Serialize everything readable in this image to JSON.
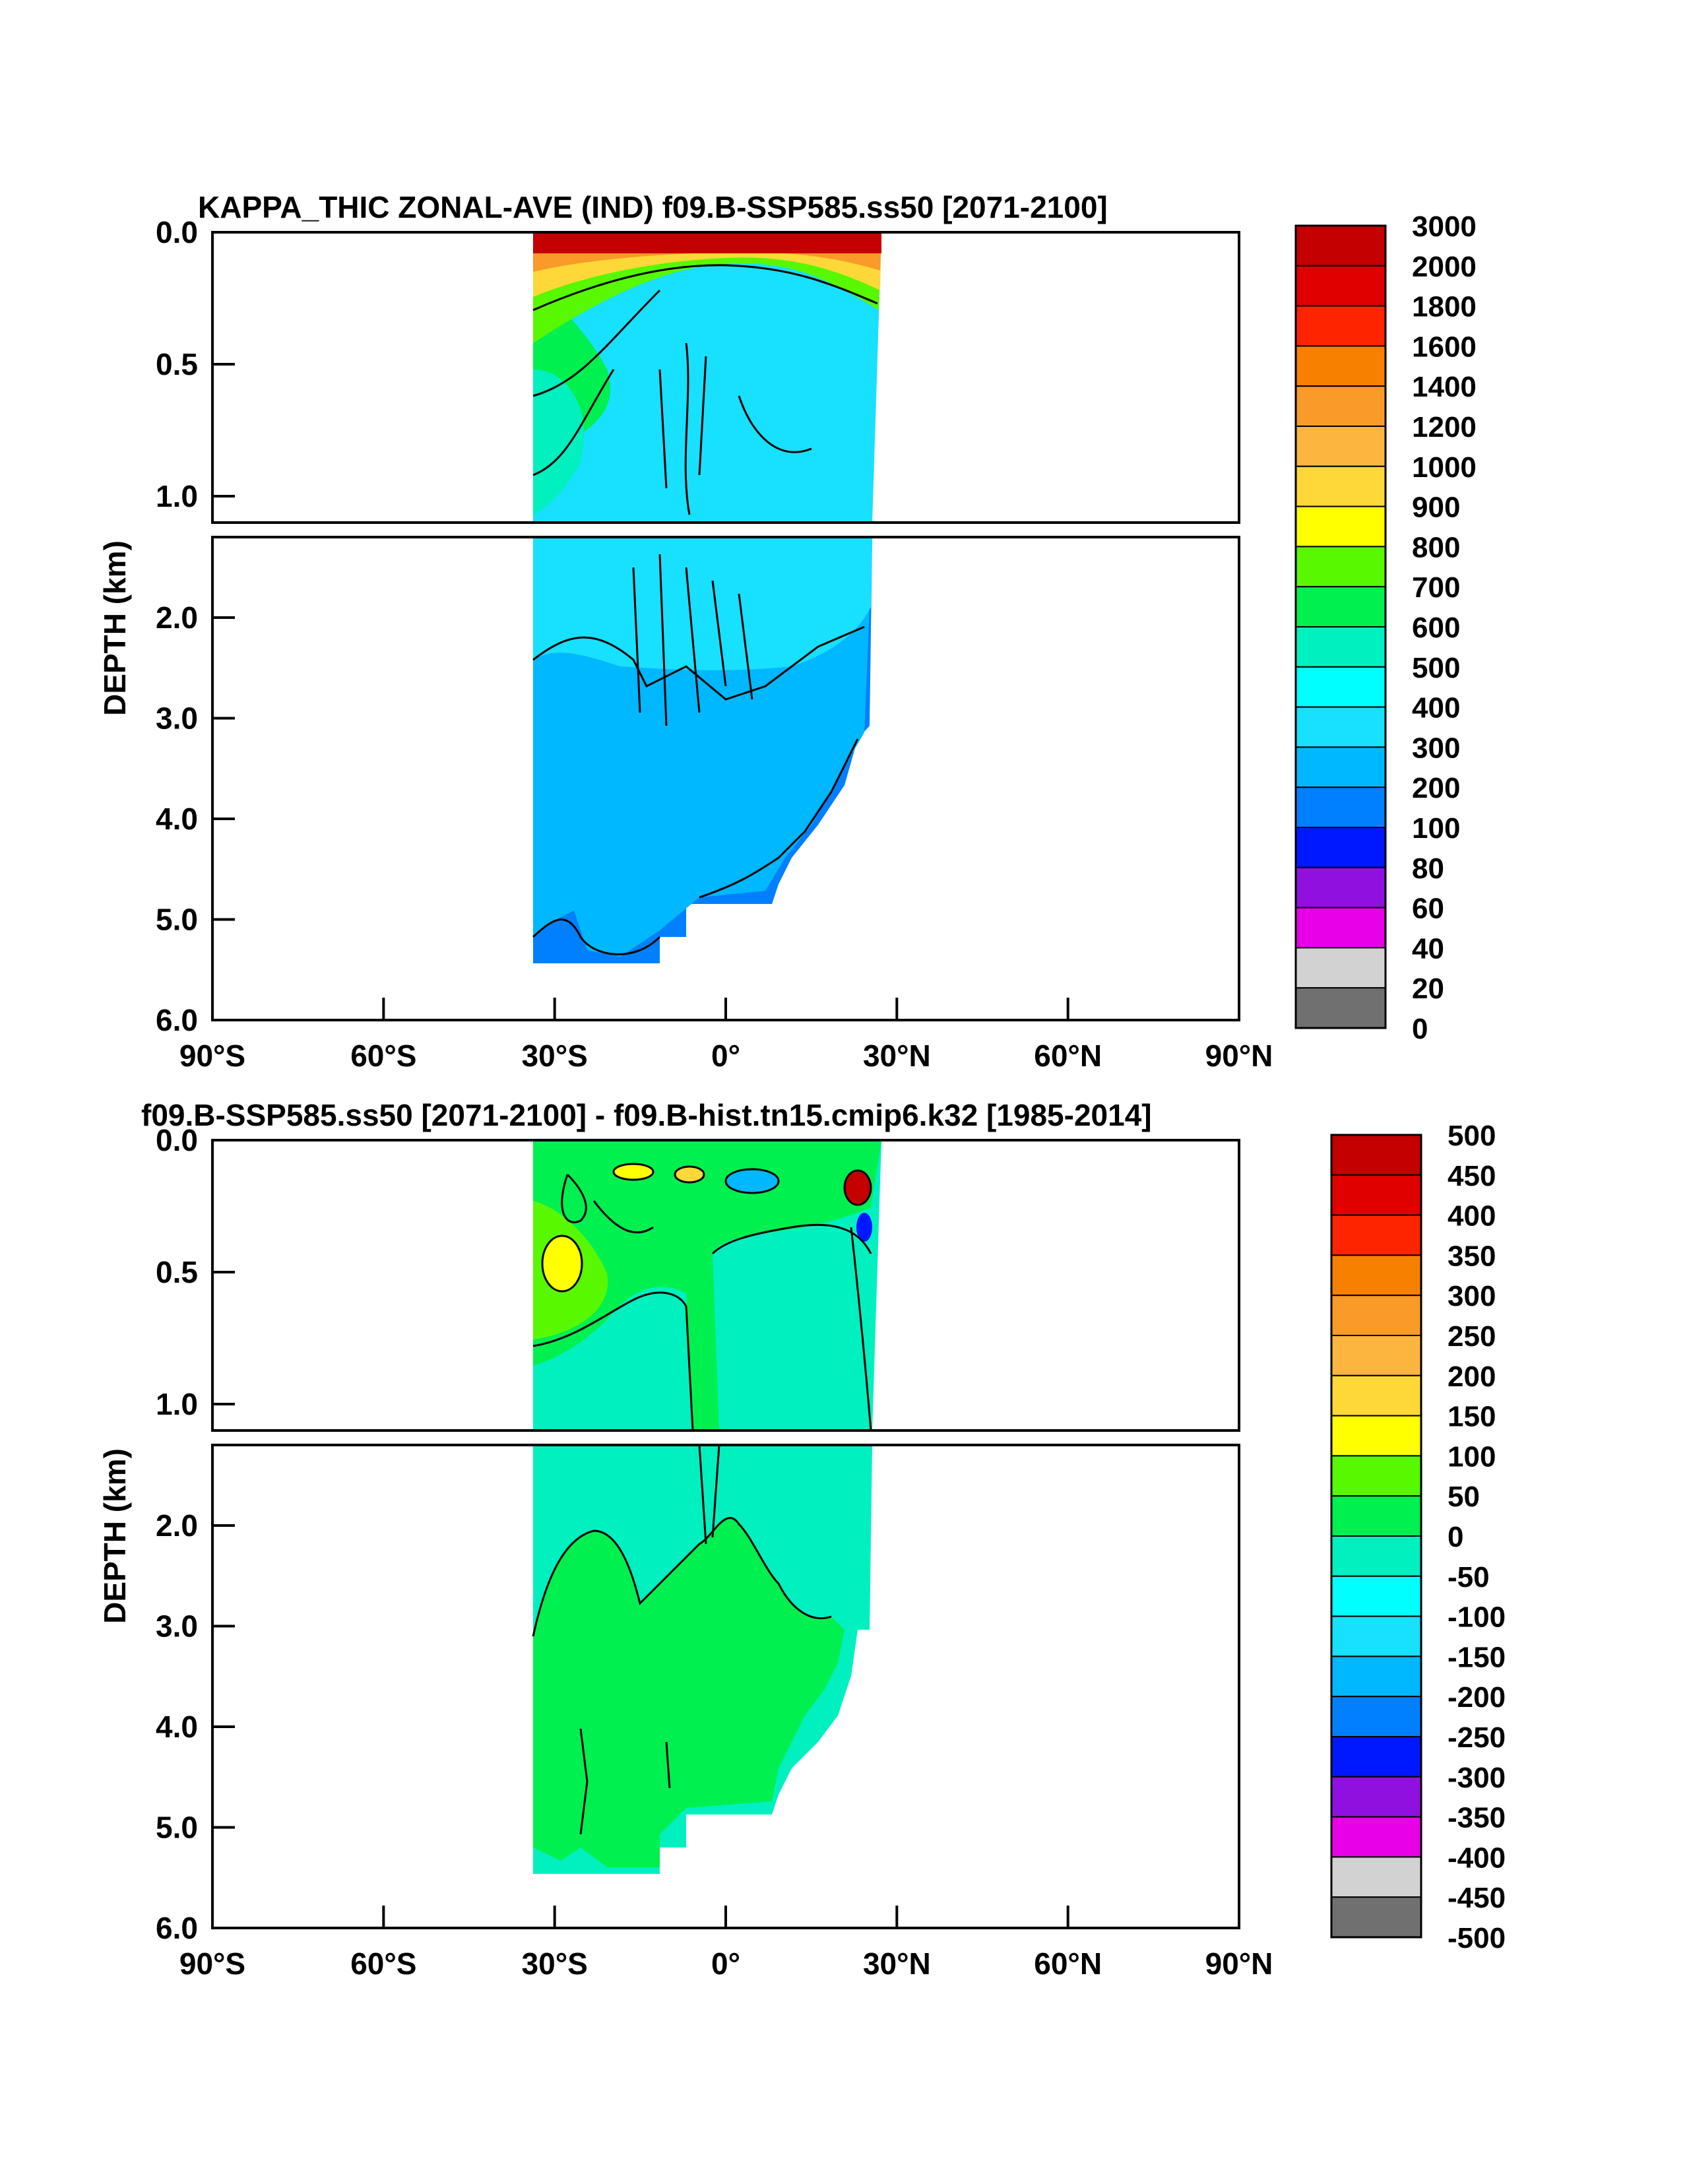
{
  "chart_data": [
    {
      "type": "contour",
      "title": "KAPPA_THIC ZONAL-AVE (IND) f09.B-SSP585.ss50 [2071-2100]",
      "ylabel": "DEPTH (km)",
      "x_ticks": [
        "90°S",
        "60°S",
        "30°S",
        "0°",
        "30°N",
        "60°N",
        "90°N"
      ],
      "x_tick_values": [
        -90,
        -60,
        -30,
        0,
        30,
        60,
        90
      ],
      "xlim": [
        -90,
        90
      ],
      "y_upper": {
        "range": [
          0,
          1.1
        ],
        "ticks": [
          "0.0",
          "0.5",
          "1.0"
        ],
        "tick_values": [
          0,
          0.5,
          1.0
        ]
      },
      "y_lower": {
        "range": [
          1.2,
          6.0
        ],
        "ticks": [
          "2.0",
          "3.0",
          "4.0",
          "5.0",
          "6.0"
        ],
        "tick_values": [
          2.0,
          3.0,
          4.0,
          5.0,
          6.0
        ]
      },
      "data_extent": {
        "lat": [
          -34,
          25
        ],
        "max_depth_km": 5.4
      },
      "colorbar": {
        "labels": [
          "3000",
          "2000",
          "1800",
          "1600",
          "1400",
          "1200",
          "1000",
          "900",
          "800",
          "700",
          "600",
          "500",
          "400",
          "300",
          "200",
          "100",
          "80",
          "60",
          "40",
          "20",
          "0"
        ],
        "colors": [
          "#c40000",
          "#e00000",
          "#ff2400",
          "#f88000",
          "#fa9a28",
          "#fcb640",
          "#fed838",
          "#ffff00",
          "#58f800",
          "#00f050",
          "#00f0c0",
          "#00ffff",
          "#18e0ff",
          "#00b8ff",
          "#0080ff",
          "#0018ff",
          "#9010e0",
          "#e800e8",
          "#d2d2d2",
          "#707070"
        ]
      },
      "fields": {
        "deep": 200,
        "mid": 300,
        "thermocline_west": 700,
        "surface": 3000,
        "bottom_edge": 100
      }
    },
    {
      "type": "contour",
      "title": "f09.B-SSP585.ss50 [2071-2100] - f09.B-hist.tn15.cmip6.k32 [1985-2014]",
      "ylabel": "DEPTH (km)",
      "x_ticks": [
        "90°S",
        "60°S",
        "30°S",
        "0°",
        "30°N",
        "60°N",
        "90°N"
      ],
      "x_tick_values": [
        -90,
        -60,
        -30,
        0,
        30,
        60,
        90
      ],
      "xlim": [
        -90,
        90
      ],
      "y_upper": {
        "range": [
          0,
          1.1
        ],
        "ticks": [
          "0.0",
          "0.5",
          "1.0"
        ],
        "tick_values": [
          0,
          0.5,
          1.0
        ]
      },
      "y_lower": {
        "range": [
          1.2,
          6.0
        ],
        "ticks": [
          "2.0",
          "3.0",
          "4.0",
          "5.0",
          "6.0"
        ],
        "tick_values": [
          2.0,
          3.0,
          4.0,
          5.0,
          6.0
        ]
      },
      "data_extent": {
        "lat": [
          -34,
          25
        ],
        "max_depth_km": 5.4
      },
      "colorbar": {
        "labels": [
          "500",
          "450",
          "400",
          "350",
          "300",
          "250",
          "200",
          "150",
          "100",
          "50",
          "0",
          "-50",
          "-100",
          "-150",
          "-200",
          "-250",
          "-300",
          "-350",
          "-400",
          "-450",
          "-500"
        ],
        "colors": [
          "#c40000",
          "#e00000",
          "#ff2400",
          "#f88000",
          "#fa9a28",
          "#fcb640",
          "#fed838",
          "#ffff00",
          "#58f800",
          "#00f050",
          "#00f0c0",
          "#00ffff",
          "#18e0ff",
          "#00b8ff",
          "#0080ff",
          "#0018ff",
          "#9010e0",
          "#e800e8",
          "#d2d2d2",
          "#707070"
        ]
      },
      "fields": {
        "background": -25,
        "deep_positive": 25,
        "west_max": 175
      }
    }
  ]
}
